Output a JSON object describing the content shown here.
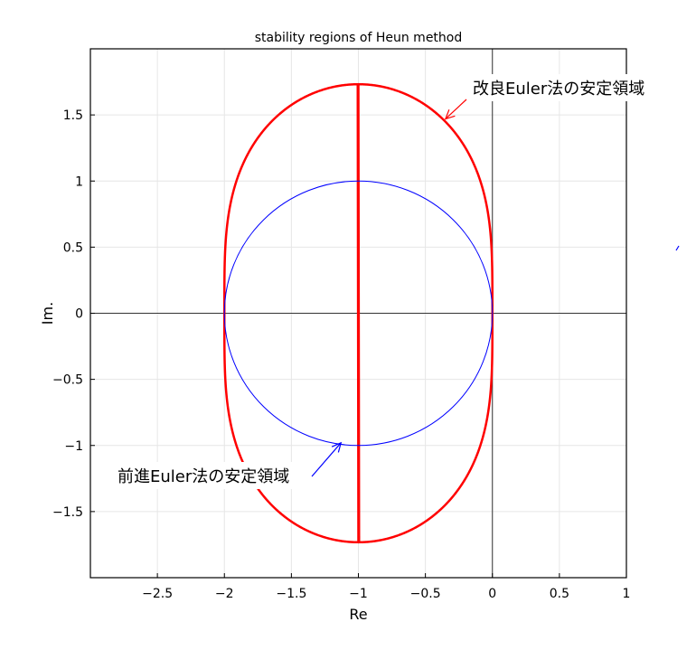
{
  "chart_data": {
    "type": "line",
    "title": "stability regions of Heun method",
    "xlabel": "Re",
    "ylabel": "Im.",
    "xlim": [
      -3,
      1
    ],
    "ylim": [
      -2,
      2
    ],
    "grid": true,
    "x_ticks": [
      -2.5,
      -2,
      -1.5,
      -1,
      -0.5,
      0,
      0.5,
      1
    ],
    "x_tick_labels": [
      "−2.5",
      "−2",
      "−1.5",
      "−1",
      "−0.5",
      "0",
      "0.5",
      "1"
    ],
    "y_ticks": [
      1.5,
      1,
      0.5,
      0,
      -0.5,
      -1,
      -1.5
    ],
    "y_tick_labels": [
      "1.5",
      "1",
      "0.5",
      "0",
      "−0.5",
      "−1",
      "−1.5"
    ],
    "series": [
      {
        "color": "#ff0000",
        "boundary": "|1 + z + z^2/2| = 1",
        "points": [
          [
            0,
            0
          ],
          [
            -1,
            1.732
          ],
          [
            -2,
            0
          ],
          [
            -1,
            -1.732
          ]
        ]
      },
      {
        "color": "#0000ff",
        "boundary": "|1 + z| = 1",
        "center": [
          -1,
          0
        ],
        "radius": 1
      }
    ],
    "annotations": [
      {
        "text": "改良Euler法の安定領域",
        "color": "#ff0000",
        "arrow_to": [
          -0.35,
          1.47
        ]
      },
      {
        "text": "前進Euler法の安定領域",
        "color": "#0000ff",
        "arrow_to": [
          -1.13,
          -0.98
        ]
      }
    ]
  }
}
